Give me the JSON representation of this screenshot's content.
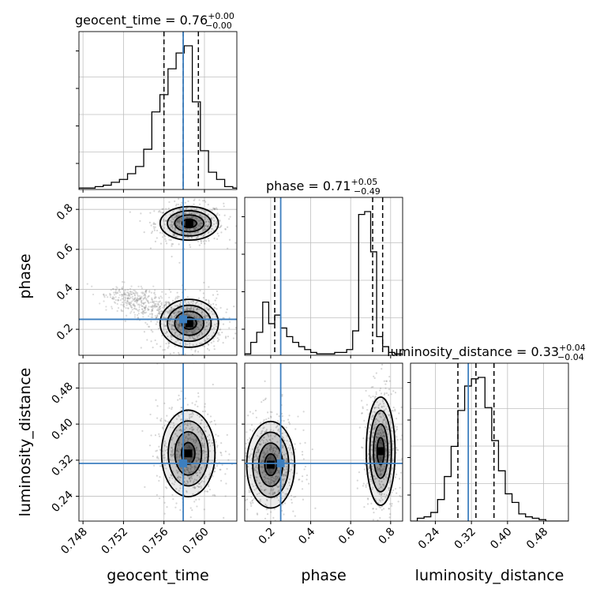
{
  "chart_data": {
    "type": "corner",
    "parameters": [
      "geocent_time",
      "phase",
      "luminosity_distance"
    ],
    "axis_labels": {
      "geocent_time": "geocent_time",
      "phase": "phase",
      "luminosity_distance": "luminosity_distance"
    },
    "titles": {
      "geocent_time": {
        "prefix": "geocent_time = 0.76",
        "sup": "+0.00",
        "sub": "−0.00"
      },
      "phase": {
        "prefix": "phase = 0.71",
        "sup": "+0.05",
        "sub": "−0.49"
      },
      "luminosity_distance": {
        "prefix": "luminosity_distance = 0.33",
        "sup": "+0.04",
        "sub": "−0.04"
      }
    },
    "ranges": {
      "geocent_time": [
        0.7476,
        0.7632
      ],
      "phase": [
        0.07,
        0.86
      ],
      "luminosity_distance": [
        0.185,
        0.535
      ]
    },
    "ticks": {
      "geocent_time": [
        "0.748",
        "0.752",
        "0.756",
        "0.760"
      ],
      "phase": [
        "0.2",
        "0.4",
        "0.6",
        "0.8"
      ],
      "luminosity_distance": [
        "0.24",
        "0.32",
        "0.40",
        "0.48"
      ]
    },
    "injection": {
      "geocent_time": 0.7579,
      "phase": 0.25,
      "luminosity_distance": 0.313
    },
    "quantiles": {
      "geocent_time": [
        0.756,
        0.7579,
        0.7594
      ],
      "phase": [
        0.22,
        0.71,
        0.76
      ],
      "luminosity_distance": [
        0.29,
        0.33,
        0.37
      ]
    },
    "histograms": {
      "geocent_time": {
        "edges": [
          0.7476,
          0.7484,
          0.7492,
          0.75,
          0.7508,
          0.7516,
          0.7524,
          0.7532,
          0.754,
          0.7548,
          0.7556,
          0.7564,
          0.7572,
          0.758,
          0.7588,
          0.7596,
          0.7604,
          0.7612,
          0.762,
          0.7628,
          0.7632
        ],
        "counts": [
          0.01,
          0.01,
          0.02,
          0.03,
          0.05,
          0.07,
          0.11,
          0.16,
          0.28,
          0.54,
          0.66,
          0.84,
          0.95,
          1.0,
          0.61,
          0.27,
          0.12,
          0.07,
          0.02,
          0.01
        ]
      },
      "phase": {
        "edges": [
          0.07,
          0.1,
          0.13,
          0.16,
          0.19,
          0.22,
          0.25,
          0.28,
          0.31,
          0.34,
          0.37,
          0.4,
          0.43,
          0.46,
          0.49,
          0.52,
          0.55,
          0.58,
          0.61,
          0.64,
          0.67,
          0.7,
          0.73,
          0.76,
          0.79,
          0.82,
          0.86
        ],
        "counts": [
          0.01,
          0.09,
          0.16,
          0.37,
          0.22,
          0.28,
          0.19,
          0.13,
          0.09,
          0.06,
          0.04,
          0.02,
          0.01,
          0.01,
          0.01,
          0.02,
          0.02,
          0.04,
          0.17,
          0.98,
          1.0,
          0.72,
          0.13,
          0.06,
          0.02,
          0.01
        ]
      },
      "luminosity_distance": {
        "edges": [
          0.185,
          0.2,
          0.215,
          0.23,
          0.245,
          0.26,
          0.275,
          0.29,
          0.305,
          0.32,
          0.335,
          0.35,
          0.365,
          0.38,
          0.395,
          0.41,
          0.425,
          0.44,
          0.455,
          0.47,
          0.485,
          0.5,
          0.535
        ],
        "counts": [
          0.0,
          0.02,
          0.03,
          0.06,
          0.15,
          0.31,
          0.52,
          0.77,
          0.94,
          0.99,
          1.0,
          0.79,
          0.56,
          0.35,
          0.19,
          0.13,
          0.05,
          0.03,
          0.02,
          0.01,
          0.0,
          0.0
        ]
      }
    },
    "panels_2d": [
      {
        "x": "geocent_time",
        "y": "phase",
        "modes": [
          {
            "cx": 0.7585,
            "cy": 0.73,
            "sx": 0.0012,
            "sy": 0.035
          },
          {
            "cx": 0.7585,
            "cy": 0.23,
            "sx": 0.0012,
            "sy": 0.05
          }
        ]
      },
      {
        "x": "geocent_time",
        "y": "luminosity_distance",
        "modes": [
          {
            "cx": 0.7584,
            "cy": 0.335,
            "sx": 0.0011,
            "sy": 0.04
          }
        ]
      },
      {
        "x": "phase",
        "y": "luminosity_distance",
        "modes": [
          {
            "cx": 0.2,
            "cy": 0.31,
            "sx": 0.05,
            "sy": 0.04
          },
          {
            "cx": 0.75,
            "cy": 0.34,
            "sx": 0.03,
            "sy": 0.05
          }
        ]
      }
    ],
    "grid": true,
    "colors": {
      "injection": "#3d7fbf",
      "contour": "#000000",
      "hist": "#000000",
      "grid": "#bfbfbf",
      "scatter": "#8a8a8a"
    }
  }
}
